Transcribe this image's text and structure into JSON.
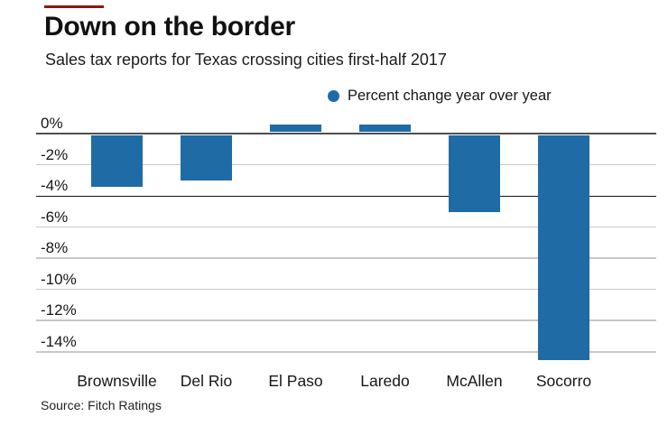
{
  "header": {
    "title": "Down on the border",
    "subtitle": "Sales tax reports for Texas crossing cities first-half 2017"
  },
  "legend": {
    "label": "Percent change year over year"
  },
  "footer": {
    "source": "Source: Fitch Ratings"
  },
  "colors": {
    "bar": "#1f6ba6",
    "accent_line": "#8b1711",
    "baseline": "#4f4f4f",
    "gridline": "#c8c8c8",
    "dark_gridline": "#141414",
    "text": "#161616"
  },
  "chart_data": {
    "type": "bar",
    "title": "Down on the border",
    "subtitle": "Sales tax reports for Texas crossing cities first-half 2017",
    "series_label": "Percent change year over year",
    "categories": [
      "Brownsville",
      "Del Rio",
      "El Paso",
      "Laredo",
      "McAllen",
      "Socorro"
    ],
    "values": [
      -3.4,
      -3.0,
      0.5,
      0.5,
      -5.0,
      -14.5
    ],
    "unit": "%",
    "xlabel": "",
    "ylabel": "",
    "y_ticks": [
      "0%",
      "-2%",
      "-4%",
      "-6%",
      "-8%",
      "-10%",
      "-12%",
      "-14%"
    ],
    "y_tick_values": [
      0,
      -2,
      -4,
      -6,
      -8,
      -10,
      -12,
      -14
    ],
    "ylim": [
      -14.6,
      0.6
    ],
    "grid": "horizontal",
    "gridline_color": "#c8c8c8",
    "zero_line_color": "#4f4f4f",
    "dark_gridline_at": -4,
    "legend_position": "top-right",
    "bar_color": "#1f6ba6",
    "source": "Source: Fitch Ratings"
  }
}
